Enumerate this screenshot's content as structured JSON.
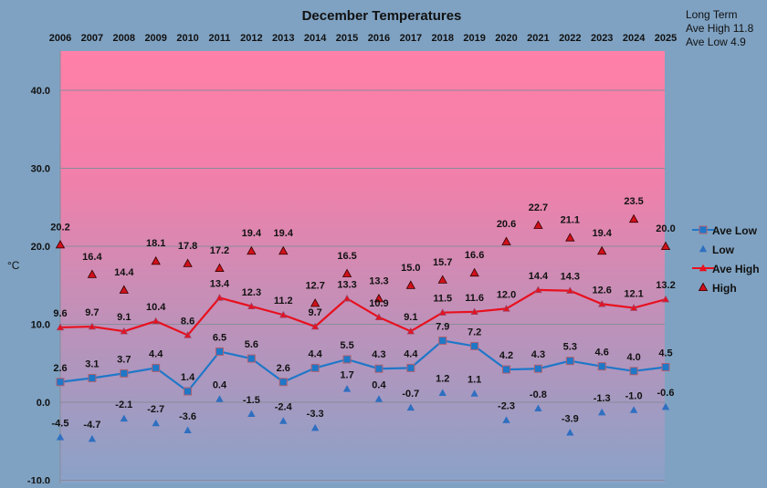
{
  "chart_data": {
    "type": "line",
    "title": "December Temperatures",
    "ylabel": "°C",
    "xlabel": "",
    "ylim": [
      -10,
      45
    ],
    "yticks": [
      "40.0",
      "30.0",
      "20.0",
      "10.0",
      "0.0",
      "-10.0"
    ],
    "ytick_values": [
      40,
      30,
      20,
      10,
      0,
      -10
    ],
    "grid": true,
    "legend_placement": "right",
    "categories": [
      "2006",
      "2007",
      "2008",
      "2009",
      "2010",
      "2011",
      "2012",
      "2013",
      "2014",
      "2015",
      "2016",
      "2017",
      "2018",
      "2019",
      "2020",
      "2021",
      "2022",
      "2023",
      "2024",
      "2025"
    ],
    "series": [
      {
        "name": "Ave Low",
        "color": "#1f77c8",
        "style": "line-square",
        "values": [
          2.6,
          3.1,
          3.7,
          4.4,
          1.4,
          6.5,
          5.6,
          2.6,
          4.4,
          5.5,
          4.3,
          4.4,
          7.9,
          7.2,
          4.2,
          4.3,
          5.3,
          4.6,
          4.0,
          4.5
        ]
      },
      {
        "name": "Low",
        "color": "#2f6fc0",
        "style": "triangle",
        "values": [
          -4.5,
          -4.7,
          -2.1,
          -2.7,
          -3.6,
          0.4,
          -1.5,
          -2.4,
          -3.3,
          1.7,
          0.4,
          -0.7,
          1.2,
          1.1,
          -2.3,
          -0.8,
          -3.9,
          -1.3,
          -1.0,
          -0.6
        ]
      },
      {
        "name": "Ave High",
        "color": "#e8101e",
        "style": "line-triangle",
        "values": [
          9.6,
          9.7,
          9.1,
          10.4,
          8.6,
          13.4,
          12.3,
          11.2,
          9.7,
          13.3,
          10.9,
          9.1,
          11.5,
          11.6,
          12.0,
          14.4,
          14.3,
          12.6,
          12.1,
          13.2
        ]
      },
      {
        "name": "High",
        "color": "#d0101a",
        "style": "triangle",
        "values": [
          20.2,
          16.4,
          14.4,
          18.1,
          17.8,
          17.2,
          19.4,
          19.4,
          12.7,
          16.5,
          13.3,
          15.0,
          15.7,
          16.6,
          20.6,
          22.7,
          21.1,
          19.4,
          23.5,
          20.0
        ]
      }
    ],
    "annotation": {
      "line1": "Long Term",
      "line2": "Ave High 11.8",
      "line3": "Ave Low 4.9"
    }
  }
}
